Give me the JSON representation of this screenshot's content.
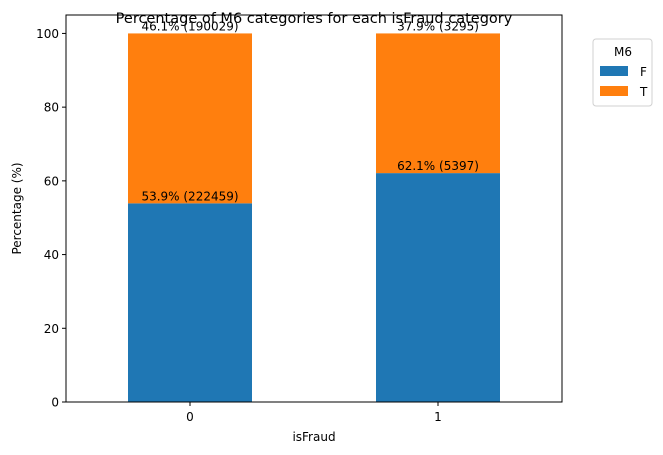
{
  "chart_data": {
    "type": "bar",
    "stacked": true,
    "title": "Percentage of M6 categories for each isFraud category",
    "xlabel": "isFraud",
    "ylabel": "Percentage (%)",
    "categories": [
      "0",
      "1"
    ],
    "ylim": [
      0,
      105
    ],
    "yticks": [
      0,
      20,
      40,
      60,
      80,
      100
    ],
    "series": [
      {
        "name": "F",
        "color": "#1f77b4",
        "values": [
          53.9,
          62.1
        ],
        "labels": [
          "53.9% (222459)",
          "62.1% (5397)"
        ]
      },
      {
        "name": "T",
        "color": "#ff7f0e",
        "values": [
          46.1,
          37.9
        ],
        "labels": [
          "46.1% (190029)",
          "37.9% (3295)"
        ]
      }
    ],
    "legend": {
      "title": "M6",
      "placement": "outside-top-right"
    },
    "grid": false
  }
}
